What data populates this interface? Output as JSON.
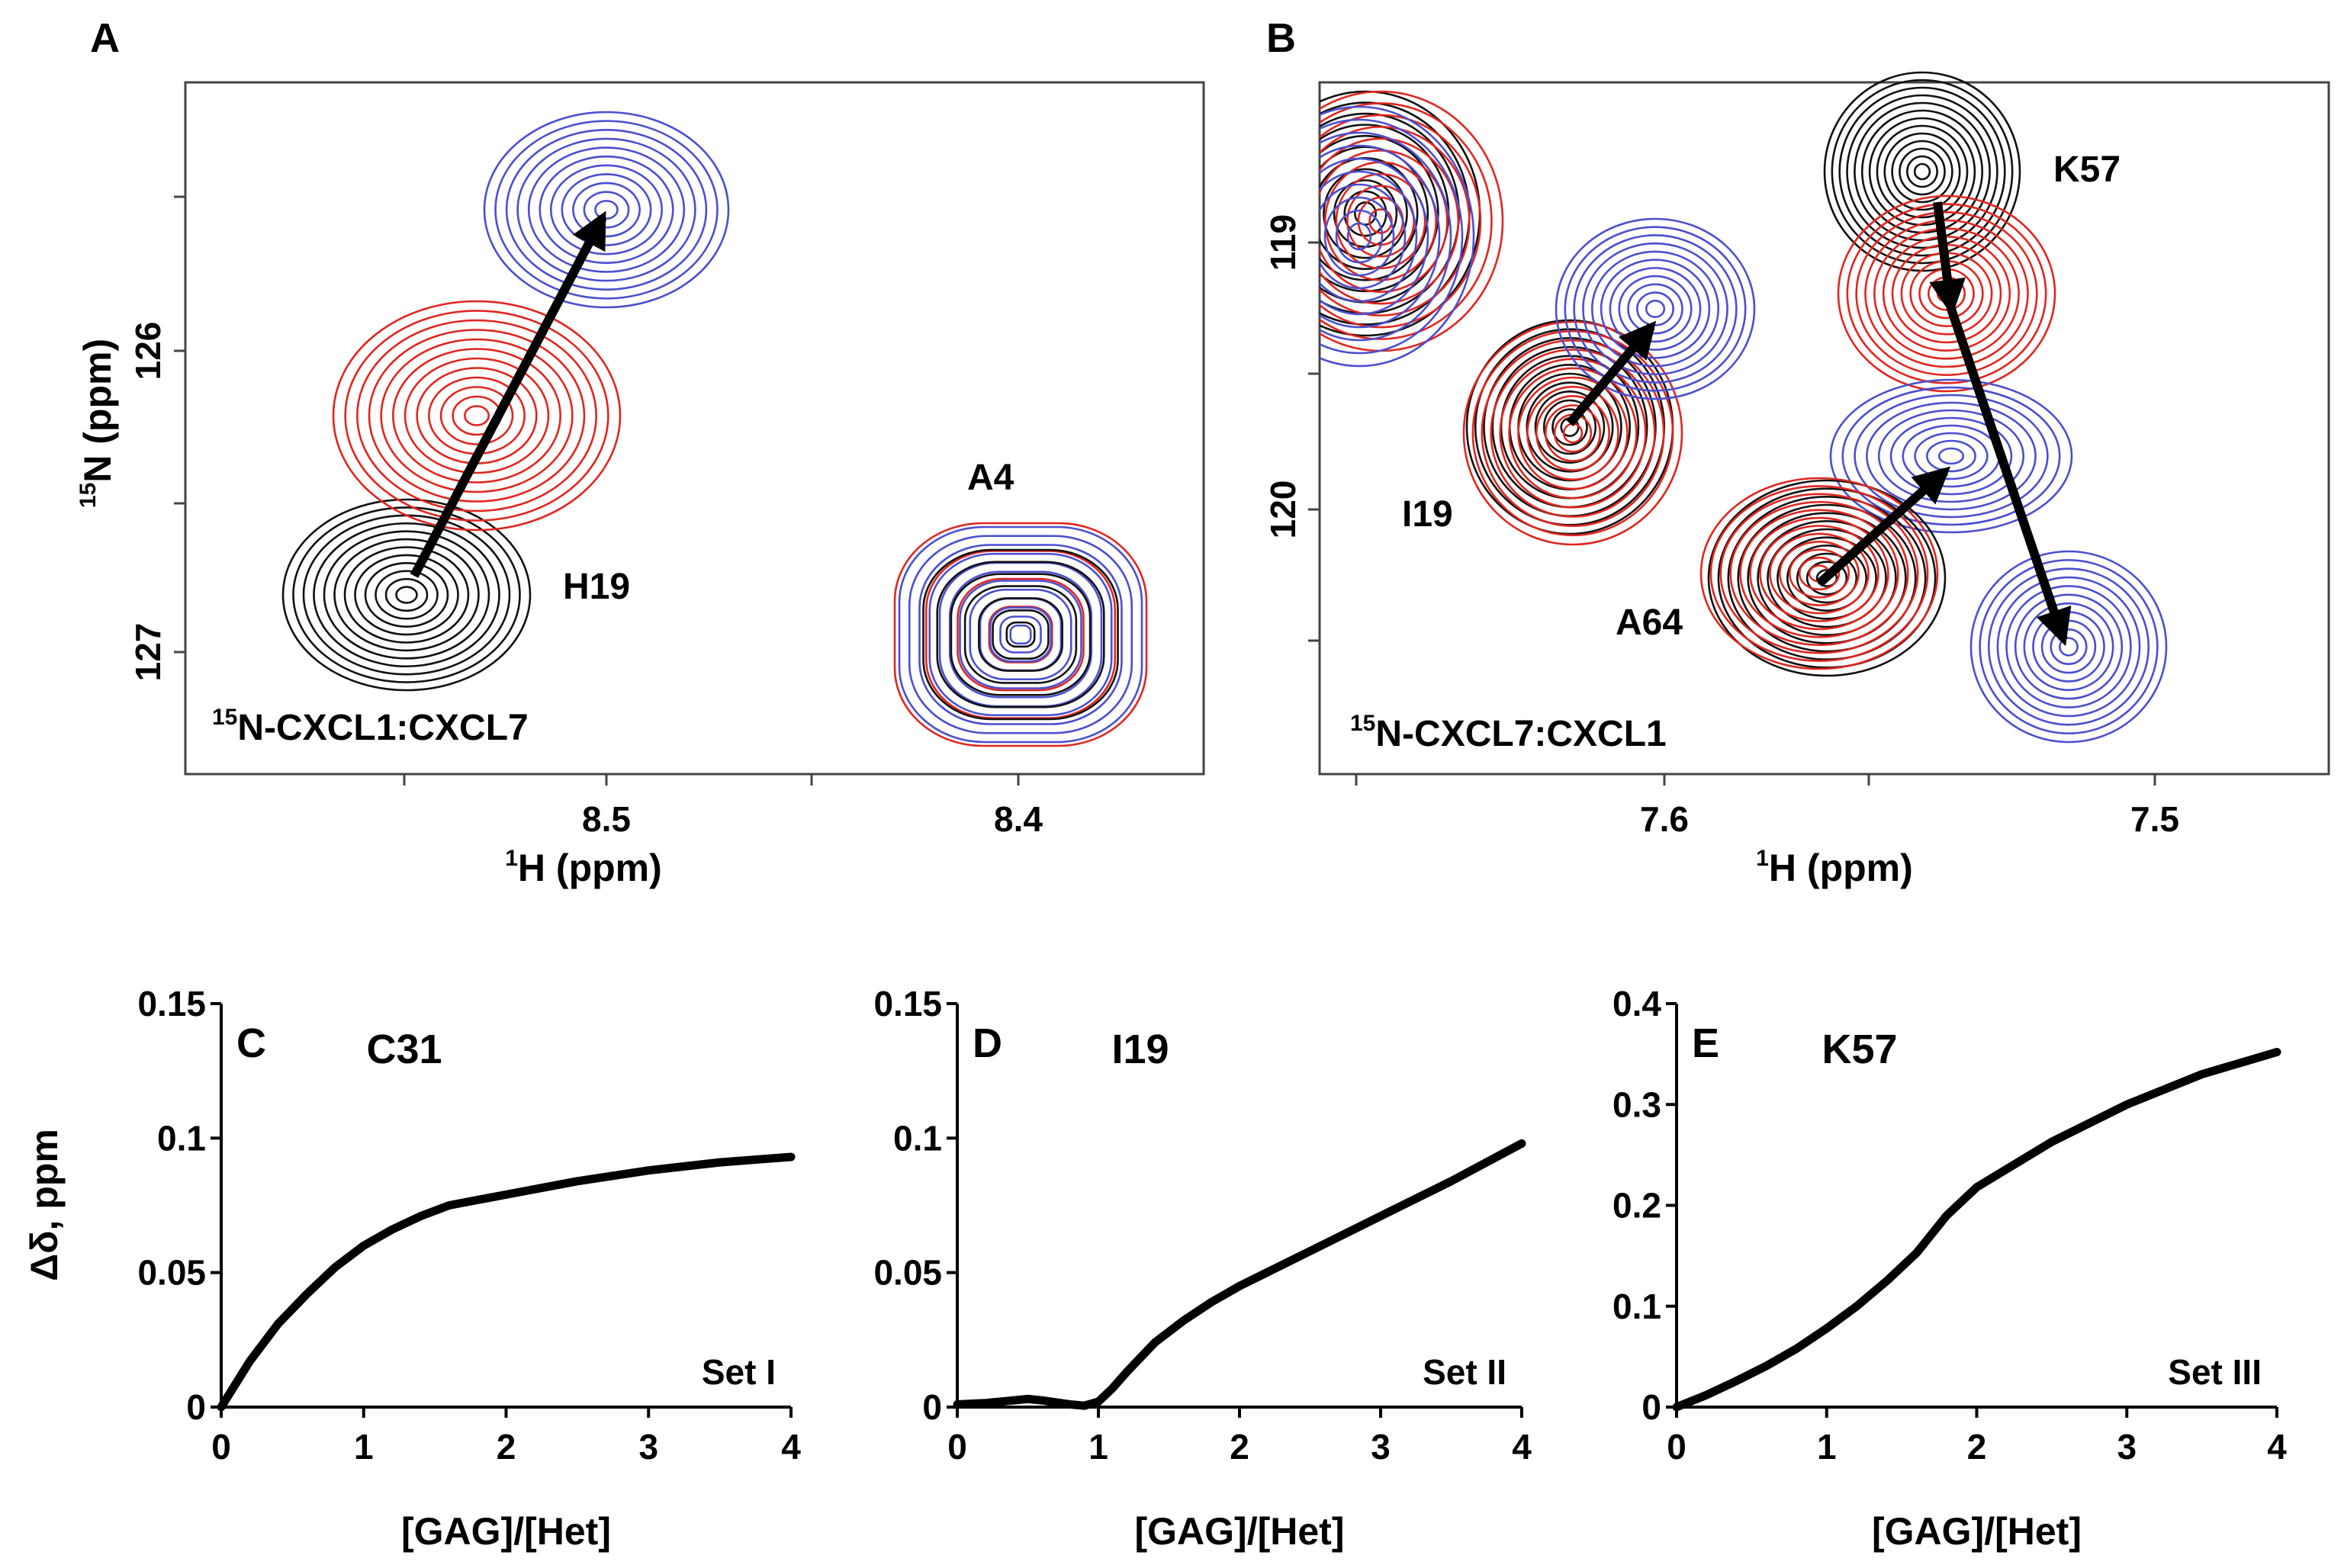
{
  "panels": {
    "A": {
      "letter": "A",
      "x_label": "H (ppm)",
      "x_label_sup": "1",
      "y_label": "N (ppm)",
      "y_label_sup": "15",
      "x_ticks": [
        "8.5",
        "8.4"
      ],
      "y_ticks": [
        "126",
        "127"
      ],
      "sample": "N-CXCL1:CXCL7",
      "sample_sup": "15",
      "peaks": [
        "H19",
        "A4"
      ]
    },
    "B": {
      "letter": "B",
      "x_label": "H (ppm)",
      "x_label_sup": "1",
      "x_ticks": [
        "7.6",
        "7.5"
      ],
      "y_ticks": [
        "119",
        "120"
      ],
      "sample": "N-CXCL7:CXCL1",
      "sample_sup": "15",
      "peaks": [
        "K57",
        "I19",
        "A64"
      ]
    }
  },
  "colors": {
    "free": "#111111",
    "mid": "#e0261f",
    "end": "#4a4fd0",
    "line": "#000000"
  },
  "chart_data": [
    {
      "type": "line",
      "panel": "C",
      "title": "C31",
      "set_label": "Set I",
      "xlabel": "[GAG]/[Het]",
      "ylabel": "Δδ, ppm",
      "xlim": [
        0,
        4
      ],
      "ylim": [
        0,
        0.15
      ],
      "x_ticks": [
        "0",
        "1",
        "2",
        "3",
        "4"
      ],
      "y_ticks": [
        "0",
        "0.05",
        "0.1",
        "0.15"
      ],
      "series": [
        {
          "name": "C31",
          "x": [
            0,
            0.2,
            0.4,
            0.6,
            0.8,
            1.0,
            1.2,
            1.4,
            1.6,
            1.8,
            2.0,
            2.5,
            3.0,
            3.5,
            4.0
          ],
          "y": [
            0,
            0.017,
            0.031,
            0.042,
            0.052,
            0.06,
            0.066,
            0.071,
            0.075,
            0.077,
            0.079,
            0.084,
            0.088,
            0.091,
            0.093
          ]
        }
      ]
    },
    {
      "type": "line",
      "panel": "D",
      "title": "I19",
      "set_label": "Set II",
      "xlabel": "[GAG]/[Het]",
      "ylabel": "",
      "xlim": [
        0,
        4
      ],
      "ylim": [
        0,
        0.15
      ],
      "x_ticks": [
        "0",
        "1",
        "2",
        "3",
        "4"
      ],
      "y_ticks": [
        "0",
        "0.05",
        "0.1",
        "0.15"
      ],
      "series": [
        {
          "name": "I19",
          "x": [
            0,
            0.2,
            0.4,
            0.5,
            0.6,
            0.8,
            0.9,
            1.0,
            1.1,
            1.2,
            1.4,
            1.6,
            1.8,
            2.0,
            2.5,
            3.0,
            3.5,
            4.0
          ],
          "y": [
            0.001,
            0.0015,
            0.0025,
            0.003,
            0.0025,
            0.001,
            0.0005,
            0.002,
            0.007,
            0.013,
            0.024,
            0.032,
            0.039,
            0.045,
            0.058,
            0.071,
            0.084,
            0.098
          ]
        }
      ]
    },
    {
      "type": "line",
      "panel": "E",
      "title": "K57",
      "set_label": "Set III",
      "xlabel": "[GAG]/[Het]",
      "ylabel": "",
      "xlim": [
        0,
        4
      ],
      "ylim": [
        0,
        0.4
      ],
      "x_ticks": [
        "0",
        "1",
        "2",
        "3",
        "4"
      ],
      "y_ticks": [
        "0",
        "0.1",
        "0.2",
        "0.3",
        "0.4"
      ],
      "series": [
        {
          "name": "K57",
          "x": [
            0,
            0.2,
            0.4,
            0.6,
            0.8,
            1.0,
            1.2,
            1.4,
            1.6,
            1.8,
            2.0,
            2.5,
            3.0,
            3.5,
            4.0
          ],
          "y": [
            0,
            0.012,
            0.026,
            0.041,
            0.058,
            0.078,
            0.1,
            0.125,
            0.153,
            0.19,
            0.218,
            0.263,
            0.3,
            0.33,
            0.352
          ]
        }
      ]
    }
  ]
}
